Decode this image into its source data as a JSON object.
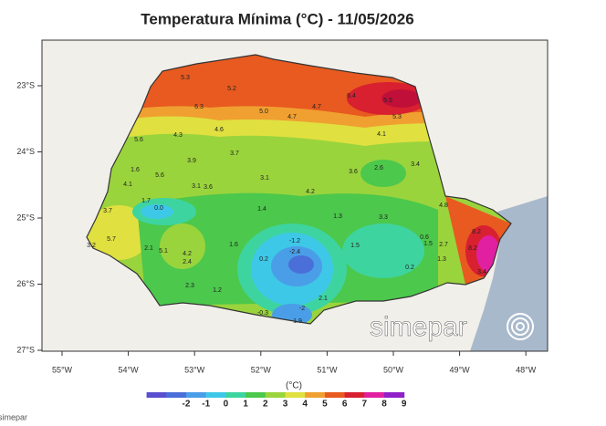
{
  "header": {
    "title": "Temperatura Mínima (°C) - 11/05/2026"
  },
  "map": {
    "lon_labels": [
      "55°W",
      "54°W",
      "53°W",
      "52°W",
      "51°W",
      "50°W",
      "49°W",
      "48°W"
    ],
    "lat_labels": [
      "23°S",
      "24°S",
      "25°S",
      "26°S",
      "27°S"
    ],
    "stations": [
      "5.3",
      "5.2",
      "6.3",
      "5.0",
      "4.7",
      "4.7",
      "6.4",
      "5.5",
      "5.3",
      "4.6",
      "4.3",
      "5.6",
      "4.1",
      "3.7",
      "3.9",
      "1.6",
      "5.6",
      "3.6",
      "2.6",
      "3.4",
      "3.1",
      "4.1",
      "3.1",
      "3.6",
      "4.2",
      "1.7",
      "0.0",
      "3.7",
      "1.4",
      "1.3",
      "3.3",
      "4.8",
      "8.2",
      "5.7",
      "3.2",
      "2.1",
      "5.1",
      "4.2",
      "2.4",
      "1.6",
      "-1.2",
      "-2.4",
      "1.5",
      "0.6",
      "1.5",
      "2.7",
      "8.2",
      "1.3",
      "3.4",
      "0.2",
      "0.2",
      "2.3",
      "1.2",
      "2.1",
      "-2",
      "-0.3",
      "1.9"
    ]
  },
  "colorbar": {
    "label": "(°C)",
    "ticks": [
      -2,
      -1,
      0,
      1,
      2,
      3,
      4,
      5,
      6,
      7,
      8,
      9
    ],
    "colors": [
      "#5a4fcf",
      "#4a6fd8",
      "#4a9ee8",
      "#3ec8e8",
      "#3ed4a0",
      "#4cc84c",
      "#9ad43c",
      "#e0e040",
      "#f0a030",
      "#e85a20",
      "#d82030",
      "#e020a0",
      "#9020c8"
    ]
  },
  "logo": {
    "text": "simepar"
  },
  "caption": {
    "text": "simepar"
  }
}
